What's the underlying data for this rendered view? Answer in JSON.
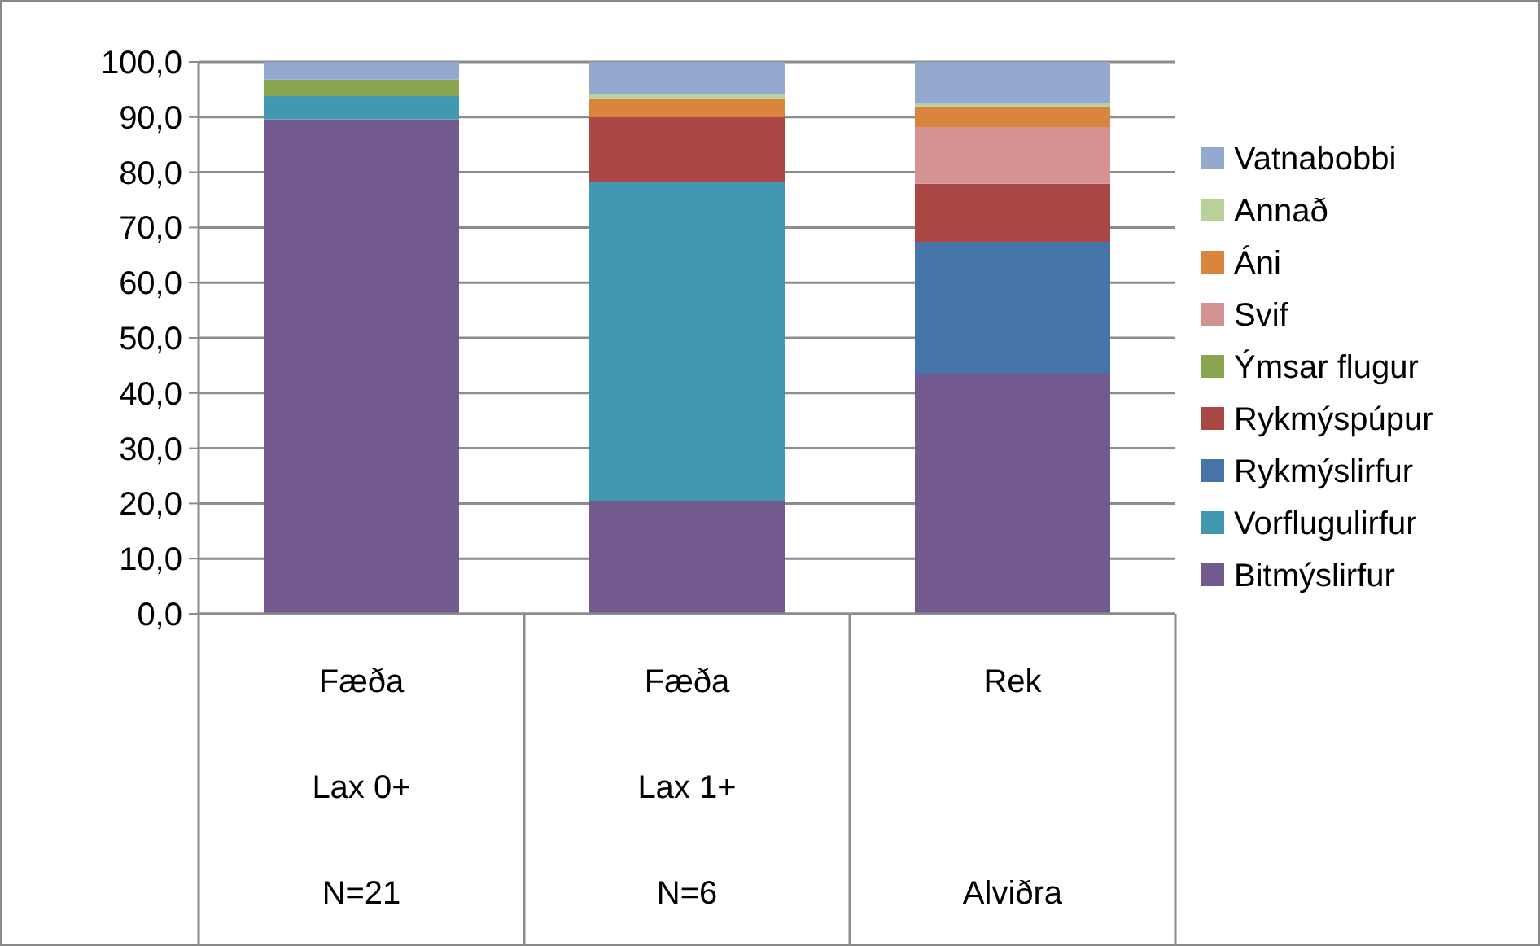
{
  "chart_data": {
    "type": "bar",
    "stacked": true,
    "categories": [
      "Fæða\nLax 0+\nN=21",
      "Fæða\nLax 1+\nN=6",
      "Rek\n\nAlviðra"
    ],
    "series": [
      {
        "name": "Bitmýslirfur",
        "color": "#725a8e",
        "values": [
          89.6,
          20.5,
          43.5
        ]
      },
      {
        "name": "Vorflugulirfur",
        "color": "#4298b0",
        "values": [
          4.2,
          57.7,
          null
        ]
      },
      {
        "name": "Rykmýslirfur",
        "color": "#4673a8",
        "values": [
          null,
          null,
          23.9
        ]
      },
      {
        "name": "Rykmýspúpur",
        "color": "#a94845",
        "values": [
          null,
          11.8,
          10.5
        ]
      },
      {
        "name": "Ýmsar flugur",
        "color": "#89a54e",
        "values": [
          3.0,
          null,
          null
        ]
      },
      {
        "name": "Svif",
        "color": "#d49392",
        "values": [
          null,
          null,
          10.3
        ]
      },
      {
        "name": "Áni",
        "color": "#db843d",
        "values": [
          null,
          3.4,
          3.7
        ]
      },
      {
        "name": "Annað",
        "color": "#b9d29a",
        "values": [
          null,
          0.7,
          0.5
        ]
      },
      {
        "name": "Vatnabobbi",
        "color": "#93a9cf",
        "values": [
          3.2,
          5.9,
          7.6
        ]
      }
    ],
    "ylim": [
      0,
      100
    ],
    "yticks": [
      {
        "value": 0,
        "label": "0,0"
      },
      {
        "value": 10,
        "label": "10,0"
      },
      {
        "value": 20,
        "label": "20,0"
      },
      {
        "value": 30,
        "label": "30,0"
      },
      {
        "value": 40,
        "label": "40,0"
      },
      {
        "value": 50,
        "label": "50,0"
      },
      {
        "value": 60,
        "label": "60,0"
      },
      {
        "value": 70,
        "label": "70,0"
      },
      {
        "value": 80,
        "label": "80,0"
      },
      {
        "value": 90,
        "label": "90,0"
      },
      {
        "value": 100,
        "label": "100,0"
      }
    ],
    "grid": "y",
    "legend": "right"
  }
}
